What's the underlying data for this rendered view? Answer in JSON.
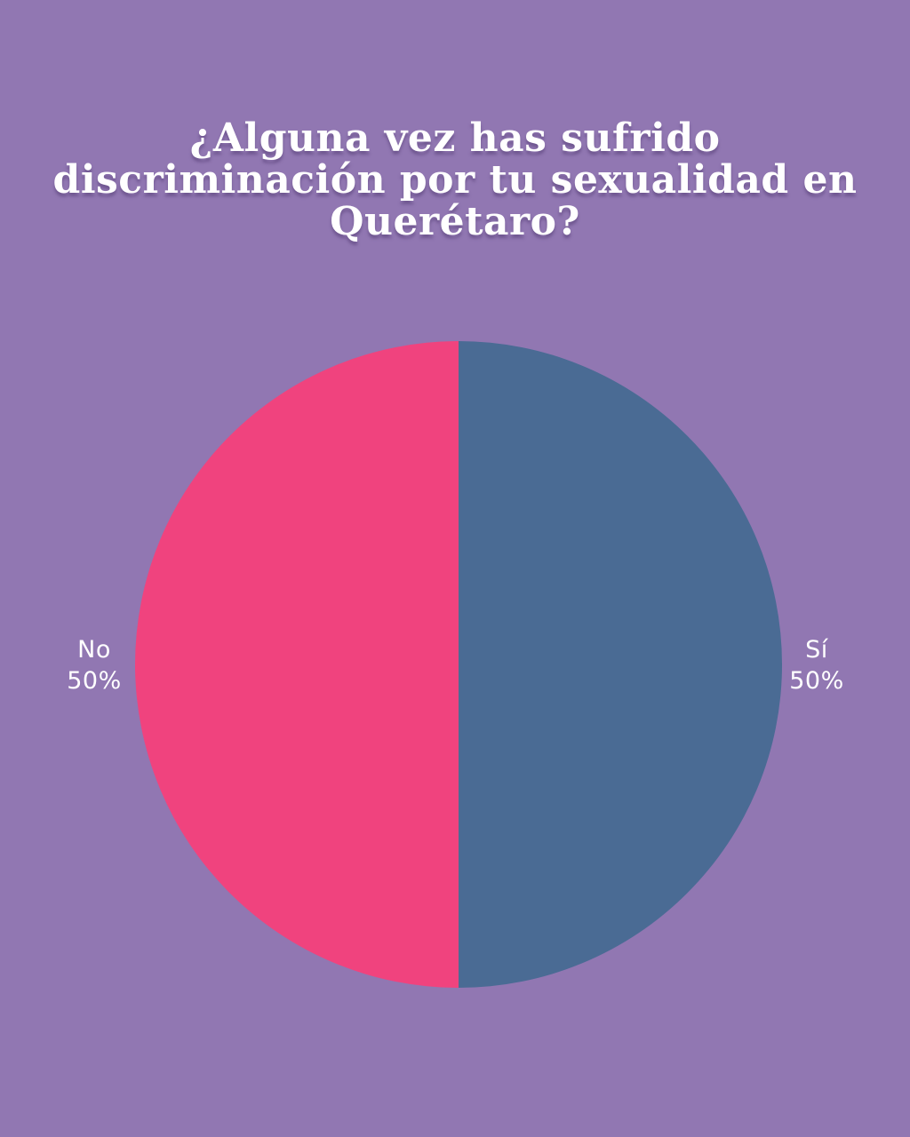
{
  "page": {
    "background_color": "#9177B2"
  },
  "title": {
    "text": "¿Alguna vez has sufrido discriminación por tu sexualidad en Querétaro?",
    "lines": [
      "¿Alguna vez has sufrido",
      "discriminación por tu sexualidad en",
      "Querétaro?"
    ]
  },
  "chart_data": {
    "type": "pie",
    "title": "¿Alguna vez has sufrido discriminación por tu sexualidad en Querétaro?",
    "start_angle": "top",
    "direction": "clockwise",
    "labels_position": "outside",
    "legend": "none",
    "slices": [
      {
        "label": "Sí",
        "value": 50,
        "pct_label": "50%",
        "color": "#4A6B94",
        "label_side": "right"
      },
      {
        "label": "No",
        "value": 50,
        "pct_label": "50%",
        "color": "#F0437E",
        "label_side": "left"
      }
    ]
  }
}
